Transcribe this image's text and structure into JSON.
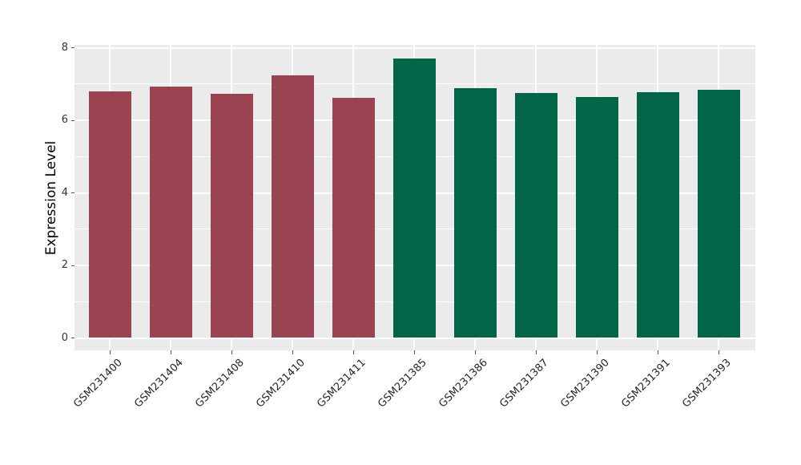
{
  "chart_data": {
    "type": "bar",
    "title": "",
    "xlabel": "",
    "ylabel": "Expression Level",
    "ylim": [
      -0.35,
      8.08
    ],
    "yticks_major": [
      0,
      2,
      4,
      6,
      8
    ],
    "yticks_minor": [
      1,
      3,
      5,
      7
    ],
    "grid": true,
    "legend": false,
    "categories": [
      "GSM231400",
      "GSM231404",
      "GSM231408",
      "GSM231410",
      "GSM231411",
      "GSM231385",
      "GSM231386",
      "GSM231387",
      "GSM231390",
      "GSM231391",
      "GSM231393"
    ],
    "values": [
      6.8,
      6.92,
      6.72,
      7.23,
      6.62,
      7.7,
      6.88,
      6.76,
      6.63,
      6.77,
      6.83
    ],
    "bars": [
      {
        "label": "GSM231400",
        "value": 6.8,
        "group": "group-red"
      },
      {
        "label": "GSM231404",
        "value": 6.92,
        "group": "group-red"
      },
      {
        "label": "GSM231408",
        "value": 6.72,
        "group": "group-red"
      },
      {
        "label": "GSM231410",
        "value": 7.23,
        "group": "group-red"
      },
      {
        "label": "GSM231411",
        "value": 6.62,
        "group": "group-red"
      },
      {
        "label": "GSM231385",
        "value": 7.7,
        "group": "group-green"
      },
      {
        "label": "GSM231386",
        "value": 6.88,
        "group": "group-green"
      },
      {
        "label": "GSM231387",
        "value": 6.76,
        "group": "group-green"
      },
      {
        "label": "GSM231390",
        "value": 6.63,
        "group": "group-green"
      },
      {
        "label": "GSM231391",
        "value": 6.77,
        "group": "group-green"
      },
      {
        "label": "GSM231393",
        "value": 6.83,
        "group": "group-green"
      }
    ],
    "group_colors": {
      "group-red": "#9A4452",
      "group-green": "#016648"
    }
  },
  "style": {
    "panel_background": "#EBEBEB",
    "grid_color": "#FFFFFF",
    "figure_background": "#FFFFFF",
    "tick_mark_color": "#555555",
    "tick_label_color": "#333333",
    "axis_title_color": "#000000"
  }
}
